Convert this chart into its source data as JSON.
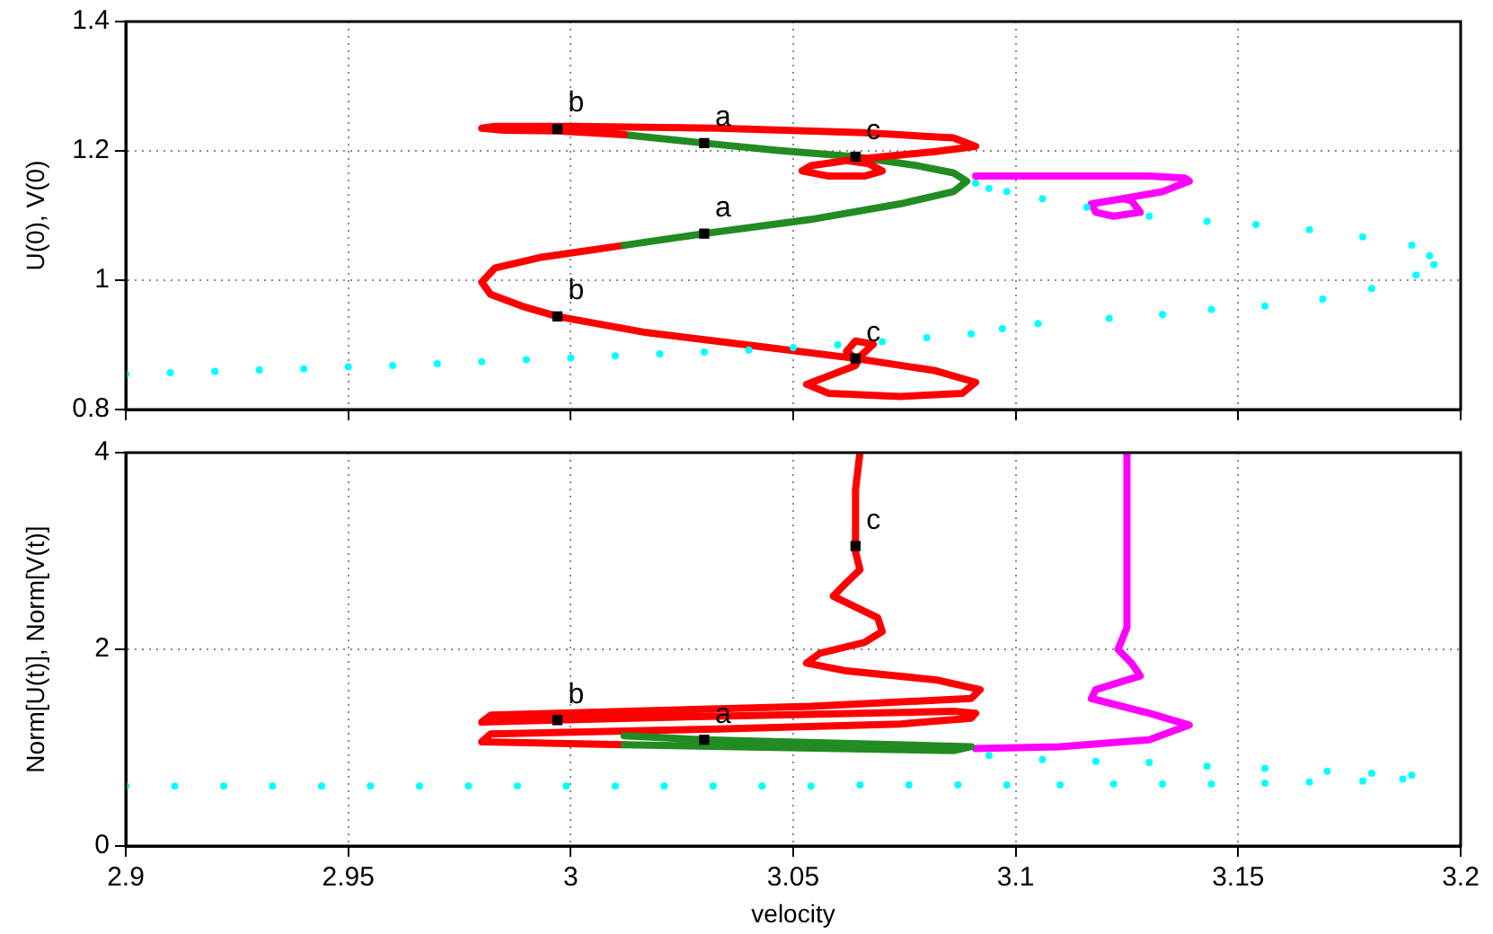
{
  "chart_data": [
    {
      "type": "line",
      "ylabel": "U(0), V(0)",
      "xlim": [
        2.9,
        3.2
      ],
      "xticks": [
        2.9,
        2.95,
        3,
        3.05,
        3.1,
        3.15,
        3.2
      ],
      "ylim": [
        0.8,
        1.4
      ],
      "yticks": [
        0.8,
        1,
        1.2,
        1.4
      ],
      "grid": true,
      "legend": false,
      "tick_labels": "y",
      "series": [
        {
          "type": "line",
          "color": "#ff0000",
          "marker": "none",
          "line_style": "solid",
          "x": [
            3.012,
            2.997,
            2.985,
            2.98,
            2.983,
            3.001,
            3.033,
            3.066,
            3.086,
            3.091,
            3.082,
            3.07,
            3.062,
            3.054,
            3.052,
            3.058,
            3.066,
            3.07,
            3.067,
            3.062
          ],
          "values": [
            1.225,
            1.231,
            1.232,
            1.235,
            1.238,
            1.238,
            1.235,
            1.228,
            1.22,
            1.207,
            1.199,
            1.191,
            1.185,
            1.177,
            1.169,
            1.161,
            1.161,
            1.169,
            1.18,
            1.185
          ]
        },
        {
          "type": "line",
          "color": "#228b22",
          "marker": "none",
          "line_style": "solid",
          "x": [
            3.012,
            3.03,
            3.046,
            3.064,
            3.078,
            3.086,
            3.089,
            3.086,
            3.074,
            3.054,
            3.03,
            3.012
          ],
          "values": [
            1.225,
            1.212,
            1.201,
            1.191,
            1.177,
            1.166,
            1.153,
            1.137,
            1.118,
            1.094,
            1.072,
            1.054
          ]
        },
        {
          "type": "line",
          "color": "#ff0000",
          "marker": "none",
          "line_style": "solid",
          "x": [
            3.012,
            2.993,
            2.983,
            2.98,
            2.982,
            2.989,
            2.997,
            3.017,
            3.042,
            3.064,
            3.082,
            3.091,
            3.088,
            3.074,
            3.058,
            3.053,
            3.058,
            3.064,
            3.065,
            3.068,
            3.064,
            3.062,
            3.064
          ],
          "values": [
            1.054,
            1.035,
            1.019,
            0.997,
            0.978,
            0.96,
            0.944,
            0.919,
            0.898,
            0.879,
            0.86,
            0.842,
            0.825,
            0.82,
            0.825,
            0.839,
            0.852,
            0.868,
            0.882,
            0.901,
            0.906,
            0.89,
            0.879
          ]
        },
        {
          "type": "scatter",
          "color": "#00ffff",
          "marker": "circle",
          "x": [
            2.9,
            2.91,
            2.92,
            2.93,
            2.94,
            2.95,
            2.96,
            2.97,
            2.98,
            2.99,
            3.0,
            3.01,
            3.02,
            3.03,
            3.04,
            3.05,
            3.06,
            3.07,
            3.08,
            3.09,
            3.097,
            3.105,
            3.121,
            3.133,
            3.144,
            3.156,
            3.169,
            3.18,
            3.19,
            3.194,
            3.193,
            3.189,
            3.178,
            3.166,
            3.154,
            3.143,
            3.13,
            3.116,
            3.106,
            3.098,
            3.094,
            3.091
          ],
          "values": [
            0.855,
            0.857,
            0.859,
            0.861,
            0.863,
            0.866,
            0.868,
            0.871,
            0.874,
            0.877,
            0.88,
            0.883,
            0.886,
            0.889,
            0.892,
            0.896,
            0.9,
            0.905,
            0.911,
            0.917,
            0.925,
            0.933,
            0.941,
            0.947,
            0.955,
            0.96,
            0.971,
            0.987,
            1.008,
            1.024,
            1.038,
            1.054,
            1.067,
            1.078,
            1.086,
            1.091,
            1.099,
            1.113,
            1.126,
            1.137,
            1.142,
            1.15
          ]
        },
        {
          "type": "line",
          "color": "#ff00ff",
          "marker": "none",
          "line_style": "solid",
          "x": [
            3.091,
            3.11,
            3.13,
            3.138,
            3.139,
            3.133,
            3.124,
            3.117,
            3.118,
            3.122,
            3.128,
            3.126,
            3.124
          ],
          "values": [
            1.161,
            1.161,
            1.161,
            1.158,
            1.153,
            1.137,
            1.126,
            1.118,
            1.105,
            1.099,
            1.105,
            1.123,
            1.126
          ]
        },
        {
          "type": "scatter",
          "color": "#000000",
          "marker": "square",
          "x": [
            2.997,
            3.03,
            3.064,
            3.03,
            2.997,
            3.064
          ],
          "values": [
            1.234,
            1.212,
            1.191,
            1.072,
            0.944,
            0.879
          ]
        }
      ],
      "annotations": [
        {
          "text": "b",
          "x": 2.997,
          "y": 1.234
        },
        {
          "text": "a",
          "x": 3.03,
          "y": 1.212
        },
        {
          "text": "c",
          "x": 3.064,
          "y": 1.191
        },
        {
          "text": "a",
          "x": 3.03,
          "y": 1.072
        },
        {
          "text": "b",
          "x": 2.997,
          "y": 0.944
        },
        {
          "text": "c",
          "x": 3.064,
          "y": 0.879
        }
      ]
    },
    {
      "type": "line",
      "xlabel": "velocity",
      "ylabel": "Norm[U(t)], Norm[V(t)]",
      "xlim": [
        2.9,
        3.2
      ],
      "xticks": [
        2.9,
        2.95,
        3,
        3.05,
        3.1,
        3.15,
        3.2
      ],
      "ylim": [
        0,
        4
      ],
      "yticks": [
        0,
        2,
        4
      ],
      "grid": true,
      "legend": false,
      "series": [
        {
          "type": "line",
          "color": "#228b22",
          "marker": "none",
          "line_style": "solid",
          "x": [
            3.012,
            3.03,
            3.09,
            3.086,
            3.012
          ],
          "values": [
            1.12,
            1.08,
            1.01,
            0.97,
            1.03
          ]
        },
        {
          "type": "line",
          "color": "#ff0000",
          "marker": "none",
          "line_style": "solid",
          "x": [
            3.012,
            2.98,
            2.982,
            3.033,
            3.074,
            3.09,
            3.091,
            3.086,
            3.033,
            2.997,
            2.98,
            2.982,
            3.013,
            3.054,
            3.09,
            3.092,
            3.082,
            3.062,
            3.053,
            3.056,
            3.066,
            3.07,
            3.069,
            3.064,
            3.059,
            3.062,
            3.065,
            3.064,
            3.064,
            3.065
          ],
          "values": [
            1.03,
            1.06,
            1.14,
            1.19,
            1.24,
            1.3,
            1.35,
            1.37,
            1.32,
            1.28,
            1.26,
            1.33,
            1.37,
            1.42,
            1.5,
            1.59,
            1.69,
            1.78,
            1.86,
            1.96,
            2.07,
            2.18,
            2.32,
            2.43,
            2.54,
            2.68,
            2.81,
            2.99,
            3.62,
            4.0
          ]
        },
        {
          "type": "scatter",
          "color": "#00ffff",
          "marker": "circle",
          "x": [
            2.9,
            2.911,
            2.922,
            2.933,
            2.944,
            2.955,
            2.966,
            2.977,
            2.988,
            2.999,
            3.01,
            3.021,
            3.032,
            3.043,
            3.054,
            3.065,
            3.076,
            3.087,
            3.098,
            3.11,
            3.122,
            3.133,
            3.144,
            3.156,
            3.166,
            3.178,
            3.187,
            3.189,
            3.18,
            3.17,
            3.156,
            3.143,
            3.13,
            3.118,
            3.106,
            3.094
          ],
          "values": [
            0.61,
            0.61,
            0.61,
            0.61,
            0.61,
            0.61,
            0.61,
            0.61,
            0.61,
            0.61,
            0.61,
            0.61,
            0.61,
            0.61,
            0.61,
            0.62,
            0.62,
            0.62,
            0.62,
            0.62,
            0.63,
            0.63,
            0.63,
            0.64,
            0.65,
            0.66,
            0.68,
            0.72,
            0.74,
            0.76,
            0.79,
            0.81,
            0.85,
            0.86,
            0.88,
            0.92
          ]
        },
        {
          "type": "line",
          "color": "#ff00ff",
          "marker": "none",
          "line_style": "solid",
          "x": [
            3.091,
            3.11,
            3.13,
            3.139,
            3.13,
            3.117,
            3.118,
            3.128,
            3.126,
            3.123,
            3.125,
            3.125
          ],
          "values": [
            0.99,
            1.01,
            1.08,
            1.23,
            1.35,
            1.5,
            1.59,
            1.73,
            1.86,
            2.0,
            2.22,
            4.0
          ]
        },
        {
          "type": "scatter",
          "color": "#000000",
          "marker": "square",
          "x": [
            2.997,
            3.03,
            3.064
          ],
          "values": [
            1.28,
            1.08,
            3.05
          ]
        }
      ],
      "annotations": [
        {
          "text": "b",
          "x": 2.997,
          "y": 1.28
        },
        {
          "text": "a",
          "x": 3.03,
          "y": 1.08
        },
        {
          "text": "c",
          "x": 3.064,
          "y": 3.05
        }
      ]
    }
  ]
}
